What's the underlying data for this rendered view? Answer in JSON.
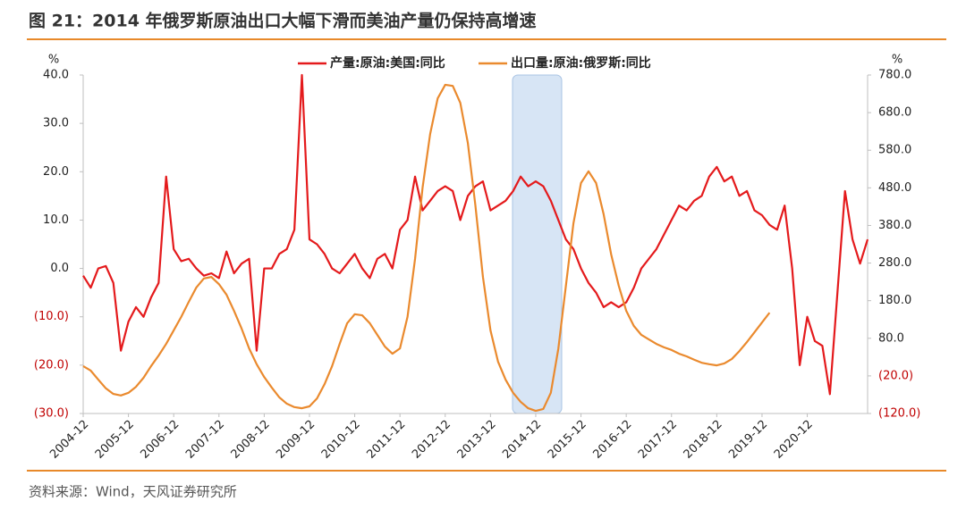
{
  "chart_data": {
    "type": "line",
    "title": "图 21：2014 年俄罗斯原油出口大幅下滑而美油产量仍保持高增速",
    "source": "资料来源：Wind，天风证券研究所",
    "y_label": "%",
    "y2_label": "%",
    "negative_label_color": "#c00000",
    "categories": [
      "2004-12",
      null,
      null,
      null,
      null,
      null,
      "2005-12",
      null,
      null,
      null,
      null,
      null,
      "2006-12",
      null,
      null,
      null,
      null,
      null,
      "2007-12",
      null,
      null,
      null,
      null,
      null,
      "2008-12",
      null,
      null,
      null,
      null,
      null,
      "2009-12",
      null,
      null,
      null,
      null,
      null,
      "2010-12",
      null,
      null,
      null,
      null,
      null,
      "2011-12",
      null,
      null,
      null,
      null,
      null,
      "2012-12",
      null,
      null,
      null,
      null,
      null,
      "2013-12",
      null,
      null,
      null,
      null,
      null,
      "2014-12",
      null,
      null,
      null,
      null,
      null,
      "2015-12",
      null,
      null,
      null,
      null,
      null,
      "2016-12",
      null,
      null,
      null,
      null,
      null,
      "2017-12",
      null,
      null,
      null,
      null,
      null,
      "2018-12",
      null,
      null,
      null,
      null,
      null,
      "2019-12",
      null,
      null,
      null,
      null,
      null,
      "2020-12",
      null,
      null,
      null,
      null,
      null,
      null,
      null,
      null
    ],
    "series": [
      {
        "name": "产量:原油:美国:同比",
        "color": "#e41a1c",
        "axis": "y",
        "values": [
          -1.5,
          -4,
          0,
          0.5,
          -3,
          -17,
          -11,
          -8,
          -10,
          -6,
          -3,
          19,
          4,
          1.5,
          2,
          0,
          -1.5,
          -1,
          -2,
          3.5,
          -1,
          1,
          2,
          -17,
          0,
          0,
          3,
          4,
          8,
          40,
          6,
          5,
          3,
          0,
          -1,
          1,
          3,
          0,
          -2,
          2,
          3,
          0,
          8,
          10,
          19,
          12,
          14,
          16,
          17,
          16,
          10,
          15,
          17,
          18,
          12,
          13,
          14,
          16,
          19,
          17,
          18,
          17,
          14,
          10,
          6,
          4,
          0,
          -3,
          -5,
          -8,
          -7,
          -8,
          -7,
          -4,
          0,
          2,
          4,
          7,
          10,
          13,
          12,
          14,
          15,
          19,
          21,
          18,
          19,
          15,
          16,
          12,
          11,
          9,
          8,
          13,
          0,
          -20,
          -10,
          -15,
          -16,
          -26,
          -5,
          16,
          6,
          1,
          6
        ]
      },
      {
        "name": "出口量:原油:俄罗斯:同比",
        "color": "#ea8a2e",
        "axis": "y2",
        "values": [
          6,
          -6,
          -30,
          -53,
          -68,
          -72,
          -65,
          -49,
          -25,
          6,
          34,
          65,
          101,
          137,
          177,
          215,
          239,
          243,
          224,
          196,
          153,
          106,
          53,
          11,
          -23,
          -51,
          -77,
          -94,
          -103,
          -106,
          -101,
          -80,
          -42,
          6,
          65,
          120,
          144,
          141,
          120,
          89,
          58,
          39,
          53,
          137,
          291,
          481,
          623,
          718,
          754,
          751,
          706,
          599,
          433,
          243,
          101,
          18,
          -30,
          -65,
          -89,
          -106,
          -113,
          -108,
          -65,
          53,
          220,
          386,
          493,
          524,
          493,
          410,
          303,
          220,
          153,
          113,
          89,
          77,
          65,
          56,
          49,
          39,
          32,
          23,
          15,
          11,
          8,
          13,
          25,
          46,
          70,
          96,
          122,
          148,
          null,
          null,
          null,
          null,
          null,
          null,
          null,
          null,
          null,
          null,
          null,
          null,
          null
        ]
      }
    ],
    "ylim": [
      -30,
      40
    ],
    "yticks": [
      {
        "value": -30,
        "label": "(30.0)"
      },
      {
        "value": -20,
        "label": "(20.0)"
      },
      {
        "value": -10,
        "label": "(10.0)"
      },
      {
        "value": 0,
        "label": "0.0"
      },
      {
        "value": 10,
        "label": "10.0"
      },
      {
        "value": 20,
        "label": "20.0"
      },
      {
        "value": 30,
        "label": "30.0"
      },
      {
        "value": 40,
        "label": "40.0"
      }
    ],
    "y2lim": [
      -120,
      780
    ],
    "y2ticks": [
      {
        "value": -120,
        "label": "(120.0)"
      },
      {
        "value": -20,
        "label": "(20.0)"
      },
      {
        "value": 80,
        "label": "80.0"
      },
      {
        "value": 180,
        "label": "180.0"
      },
      {
        "value": 280,
        "label": "280.0"
      },
      {
        "value": 380,
        "label": "380.0"
      },
      {
        "value": 480,
        "label": "480.0"
      },
      {
        "value": 580,
        "label": "580.0"
      },
      {
        "value": 680,
        "label": "680.0"
      },
      {
        "value": 780,
        "label": "780.0"
      }
    ],
    "grid": false
  }
}
